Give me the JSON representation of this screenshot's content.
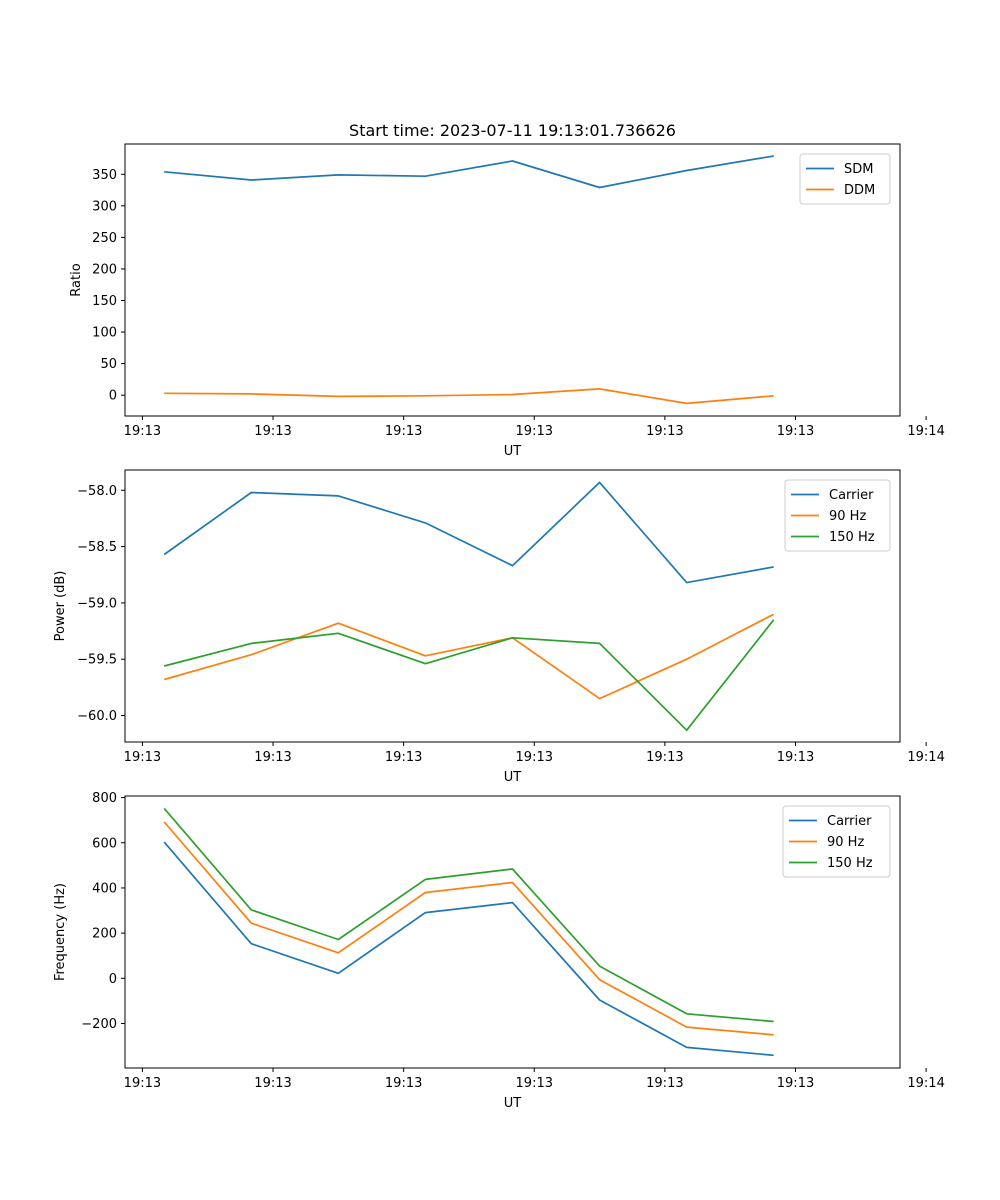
{
  "chart_data": [
    {
      "type": "line",
      "title": "Start time: 2023-07-11 19:13:01.736626",
      "xlabel": "UT",
      "ylabel": "Ratio",
      "x": [
        1,
        2,
        3,
        4,
        5,
        6,
        7,
        8
      ],
      "xlim": [
        0.55,
        9.45
      ],
      "xticks": [
        0.75,
        2.25,
        3.75,
        5.25,
        6.75,
        8.25,
        9.75
      ],
      "xtick_labels": [
        "19:13",
        "19:13",
        "19:13",
        "19:13",
        "19:13",
        "19:13",
        "19:14"
      ],
      "ylim": [
        -33,
        398
      ],
      "yticks": [
        0,
        50,
        100,
        150,
        200,
        250,
        300,
        350
      ],
      "ytick_labels": [
        "0",
        "50",
        "100",
        "150",
        "200",
        "250",
        "300",
        "350"
      ],
      "legend": "top-right",
      "series": [
        {
          "name": "SDM",
          "color": "#1f77b4",
          "values": [
            354,
            341,
            349,
            347,
            371,
            329,
            356,
            379
          ]
        },
        {
          "name": "DDM",
          "color": "#ff7f0e",
          "values": [
            3,
            2,
            -2,
            -1,
            1,
            10,
            -13,
            -1
          ]
        }
      ]
    },
    {
      "type": "line",
      "title": "",
      "xlabel": "UT",
      "ylabel": "Power (dB)",
      "x": [
        1,
        2,
        3,
        4,
        5,
        6,
        7,
        8
      ],
      "xlim": [
        0.55,
        9.45
      ],
      "xticks": [
        0.75,
        2.25,
        3.75,
        5.25,
        6.75,
        8.25,
        9.75
      ],
      "xtick_labels": [
        "19:13",
        "19:13",
        "19:13",
        "19:13",
        "19:13",
        "19:13",
        "19:14"
      ],
      "ylim": [
        -60.235,
        -57.82
      ],
      "yticks": [
        -60.0,
        -59.5,
        -59.0,
        -58.5,
        -58.0
      ],
      "ytick_labels": [
        "−60.0",
        "−59.5",
        "−59.0",
        "−58.5",
        "−58.0"
      ],
      "legend": "top-right",
      "series": [
        {
          "name": "Carrier",
          "color": "#1f77b4",
          "values": [
            -58.57,
            -58.02,
            -58.05,
            -58.29,
            -58.67,
            -57.93,
            -58.82,
            -58.68
          ]
        },
        {
          "name": "90 Hz",
          "color": "#ff7f0e",
          "values": [
            -59.68,
            -59.46,
            -59.18,
            -59.47,
            -59.31,
            -59.85,
            -59.5,
            -59.1
          ]
        },
        {
          "name": "150 Hz",
          "color": "#2ca02c",
          "values": [
            -59.56,
            -59.36,
            -59.27,
            -59.54,
            -59.31,
            -59.36,
            -60.13,
            -59.15
          ]
        }
      ]
    },
    {
      "type": "line",
      "title": "",
      "xlabel": "UT",
      "ylabel": "Frequency (Hz)",
      "x": [
        1,
        2,
        3,
        4,
        5,
        6,
        7,
        8
      ],
      "xlim": [
        0.55,
        9.45
      ],
      "xticks": [
        0.75,
        2.25,
        3.75,
        5.25,
        6.75,
        8.25,
        9.75
      ],
      "xtick_labels": [
        "19:13",
        "19:13",
        "19:13",
        "19:13",
        "19:13",
        "19:13",
        "19:14"
      ],
      "ylim": [
        -397,
        807
      ],
      "yticks": [
        -200,
        0,
        200,
        400,
        600,
        800
      ],
      "ytick_labels": [
        "−200",
        "0",
        "200",
        "400",
        "600",
        "800"
      ],
      "legend": "top-right",
      "series": [
        {
          "name": "Carrier",
          "color": "#1f77b4",
          "values": [
            603,
            153,
            22,
            291,
            335,
            -96,
            -306,
            -341
          ]
        },
        {
          "name": "90 Hz",
          "color": "#ff7f0e",
          "values": [
            692,
            244,
            113,
            380,
            424,
            -6,
            -216,
            -250
          ]
        },
        {
          "name": "150 Hz",
          "color": "#2ca02c",
          "values": [
            752,
            303,
            172,
            438,
            484,
            54,
            -157,
            -191
          ]
        }
      ]
    }
  ]
}
